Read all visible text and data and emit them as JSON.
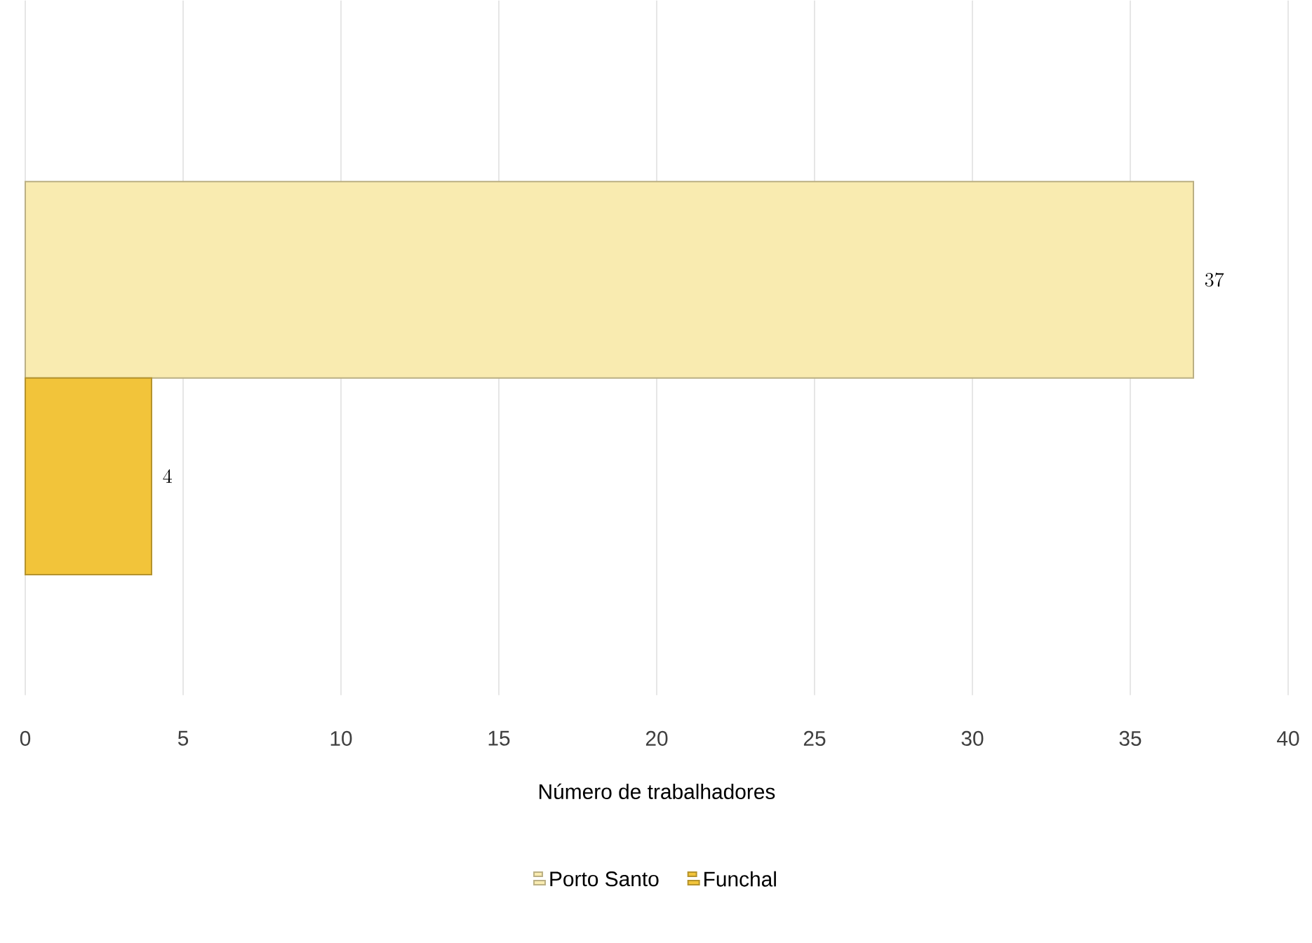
{
  "chart_data": {
    "type": "bar",
    "orientation": "horizontal",
    "xlabel": "Número de trabalhadores",
    "categories": [
      null
    ],
    "series": [
      {
        "name": "Porto Santo",
        "color": "#f9ebb0",
        "values": [
          37
        ]
      },
      {
        "name": "Funchal",
        "color": "#f2c43a",
        "values": [
          4
        ]
      }
    ],
    "xlim": [
      0,
      40
    ],
    "xticks": [
      0,
      5,
      10,
      15,
      20,
      25,
      30,
      35,
      40
    ],
    "grid": "x",
    "legend": "bottom",
    "data_labels": true
  }
}
